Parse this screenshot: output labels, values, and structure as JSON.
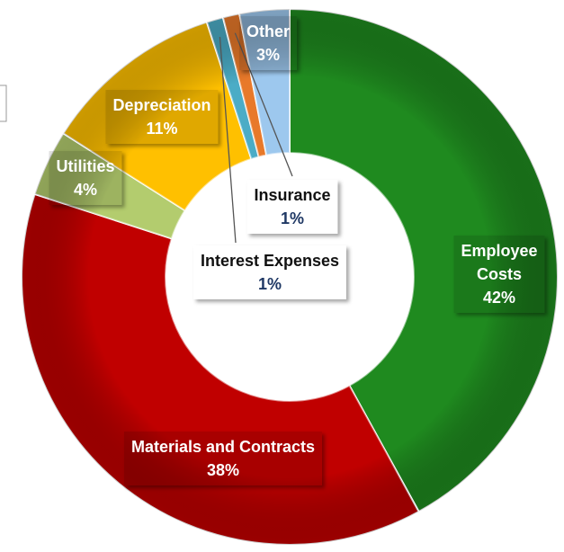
{
  "chart_data": {
    "type": "donut",
    "categories": [
      "Employee Costs",
      "Materials and Contracts",
      "Utilities",
      "Depreciation",
      "Interest Expenses",
      "Insurance",
      "Other"
    ],
    "values": [
      42,
      38,
      4,
      11,
      1,
      1,
      3
    ],
    "value_labels": [
      "42%",
      "38%",
      "4%",
      "11%",
      "1%",
      "1%",
      "3%"
    ],
    "colors": [
      "#1f8a1f",
      "#c00000",
      "#b3cc6e",
      "#ffc000",
      "#4bacc6",
      "#e8792a",
      "#9dc8ee"
    ]
  }
}
